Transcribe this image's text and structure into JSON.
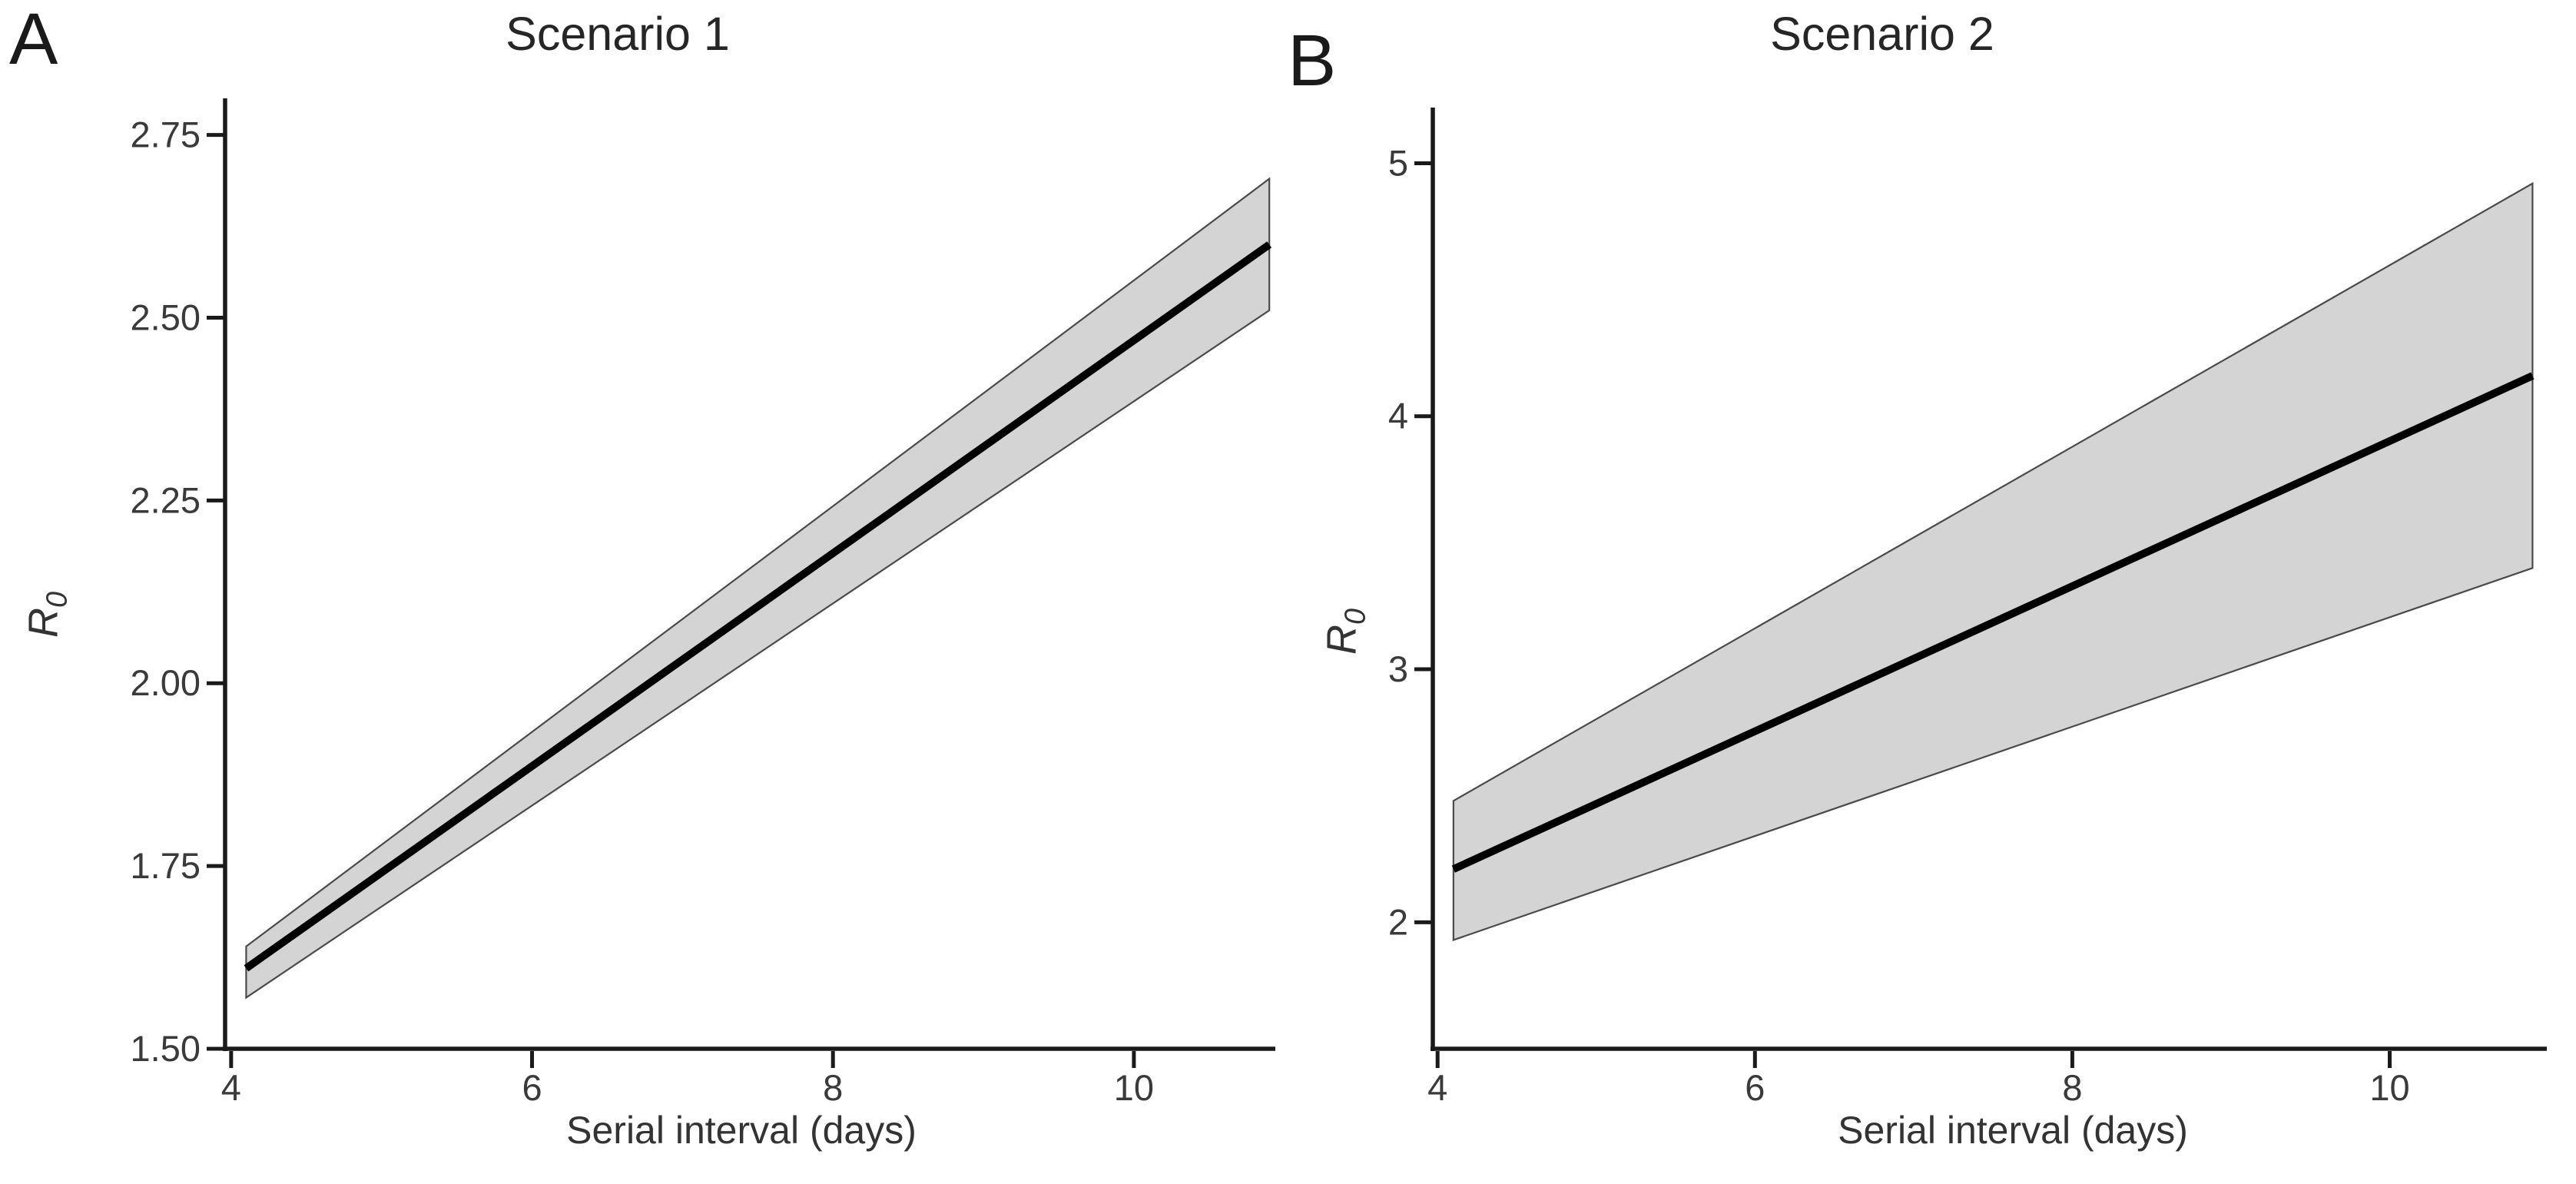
{
  "background_color": "#ffffff",
  "chart_data": [
    {
      "type": "line",
      "panel_label": "A",
      "title": "Scenario 1",
      "xlabel": "Serial interval (days)",
      "ylabel": {
        "base": "R",
        "sub": "0"
      },
      "x": [
        4.1,
        10.9
      ],
      "series": [
        {
          "name": "R0_mean",
          "values": [
            1.61,
            2.6
          ]
        },
        {
          "name": "ci_lower",
          "values": [
            1.57,
            2.51
          ]
        },
        {
          "name": "ci_upper",
          "values": [
            1.64,
            2.69
          ]
        }
      ],
      "x_ticks": {
        "values": [
          4,
          6,
          8,
          10
        ],
        "labels": [
          "4",
          "6",
          "8",
          "10"
        ]
      },
      "y_ticks": {
        "values": [
          1.5,
          1.75,
          2.0,
          2.25,
          2.5,
          2.75
        ],
        "labels": [
          "1.50",
          "1.75",
          "2.00",
          "2.25",
          "2.50",
          "2.75"
        ]
      },
      "xlim": [
        3.96,
        10.94
      ],
      "ylim": [
        1.5,
        2.8
      ],
      "grid": false,
      "legend": "none",
      "styles": {
        "line_color": "#000000",
        "ribbon_fill": "#d4d4d4",
        "ribbon_edge": "#4a4a4a",
        "axis_color": "#1a1a1a",
        "tick_label_color": "#3a3a3a"
      }
    },
    {
      "type": "line",
      "panel_label": "B",
      "title": "Scenario 2",
      "xlabel": "Serial interval (days)",
      "ylabel": {
        "base": "R",
        "sub": "0"
      },
      "x": [
        4.1,
        10.9
      ],
      "series": [
        {
          "name": "R0_mean",
          "values": [
            2.21,
            4.16
          ]
        },
        {
          "name": "ci_lower",
          "values": [
            1.93,
            3.4
          ]
        },
        {
          "name": "ci_upper",
          "values": [
            2.48,
            4.92
          ]
        }
      ],
      "x_ticks": {
        "values": [
          4,
          6,
          8,
          10
        ],
        "labels": [
          "4",
          "6",
          "8",
          "10"
        ]
      },
      "y_ticks": {
        "values": [
          2,
          3,
          4,
          5
        ],
        "labels": [
          "2",
          "3",
          "4",
          "5"
        ]
      },
      "xlim": [
        3.97,
        10.99
      ],
      "ylim": [
        1.5,
        5.22
      ],
      "grid": false,
      "legend": "none",
      "styles": {
        "line_color": "#000000",
        "ribbon_fill": "#d4d4d4",
        "ribbon_edge": "#4a4a4a",
        "axis_color": "#1a1a1a",
        "tick_label_color": "#3a3a3a"
      }
    }
  ]
}
